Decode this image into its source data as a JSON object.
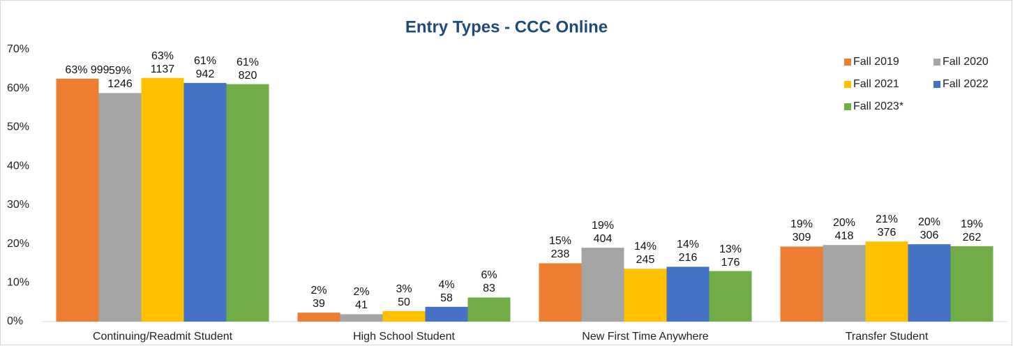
{
  "chart_data": {
    "type": "bar",
    "title": "Entry Types - CCC Online",
    "categories": [
      "Continuing/Readmit Student",
      "High School Student",
      "New First Time Anywhere",
      "Transfer Student"
    ],
    "series": [
      {
        "name": "Fall 2019",
        "color": "#ed7d31",
        "values": [
          62.5,
          2.3,
          15,
          19.3
        ],
        "value_labels": [
          "63% 999",
          "2%\n39",
          "15%\n238",
          "19%\n309"
        ]
      },
      {
        "name": "Fall 2020",
        "color": "#a5a5a5",
        "values": [
          58.8,
          1.9,
          19,
          19.7
        ],
        "value_labels": [
          "59%\n1246",
          "2%\n41",
          "19%\n404",
          "20%\n418"
        ]
      },
      {
        "name": "Fall 2021",
        "color": "#ffc000",
        "values": [
          62.7,
          2.7,
          13.6,
          20.6
        ],
        "value_labels": [
          "63%\n1137",
          "3%\n50",
          "14%\n245",
          "21%\n376"
        ]
      },
      {
        "name": "Fall 2022",
        "color": "#4472c4",
        "values": [
          61.4,
          3.8,
          14.1,
          19.9
        ],
        "value_labels": [
          "61%\n942",
          "4%\n58",
          "14%\n216",
          "20%\n306"
        ]
      },
      {
        "name": "Fall 2023*",
        "color": "#70ad47",
        "values": [
          61.1,
          6.2,
          13.0,
          19.4
        ],
        "value_labels": [
          "61%\n820",
          "6%\n83",
          "13%\n176",
          "19%\n262"
        ]
      }
    ],
    "ylim": [
      0,
      70
    ],
    "yticks": [
      {
        "value": 0,
        "label": "0%"
      },
      {
        "value": 10,
        "label": "10%"
      },
      {
        "value": 20,
        "label": "20%"
      },
      {
        "value": 30,
        "label": "30%"
      },
      {
        "value": 40,
        "label": "40%"
      },
      {
        "value": 50,
        "label": "50%"
      },
      {
        "value": 60,
        "label": "60%"
      },
      {
        "value": 70,
        "label": "70%"
      }
    ],
    "legend": "top-right"
  }
}
